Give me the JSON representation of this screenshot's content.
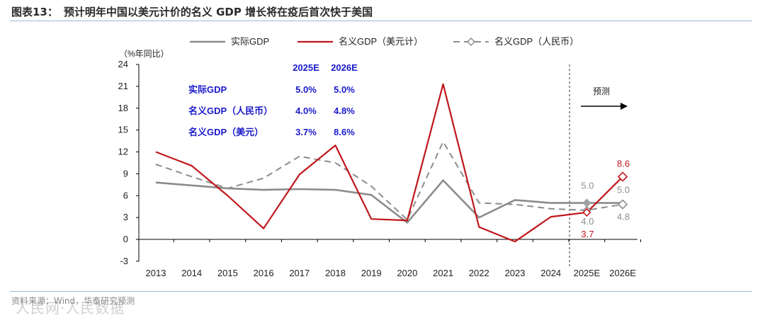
{
  "header": {
    "figure_label": "图表13：",
    "title": "预计明年中国以美元计价的名义 GDP 增长将在疫后首次快于美国"
  },
  "source": "资料来源：Wind，华泰研究预测",
  "watermark": "人民网·人民数据",
  "colors": {
    "real": "#8c8c8c",
    "usd": "#c0161b",
    "rmb": "#8c8c8c",
    "table_text": "#1a1acc",
    "rule": "#9ab7d4"
  },
  "chart_data": {
    "type": "line",
    "title": "预计明年中国以美元计价的名义 GDP 增长将在疫后首次快于美国",
    "ylabel": "（%年同比）",
    "ylim": [
      -3,
      24
    ],
    "yticks": [
      -3,
      0,
      3,
      6,
      9,
      12,
      15,
      18,
      21,
      24
    ],
    "categories": [
      "2013",
      "2014",
      "2015",
      "2016",
      "2017",
      "2018",
      "2019",
      "2020",
      "2021",
      "2022",
      "2023",
      "2024",
      "2025E",
      "2026E"
    ],
    "forecast_divider_after": "2024",
    "forecast_label": "预测",
    "series": [
      {
        "name": "实际GDP",
        "style": "solid-gray",
        "values": [
          7.8,
          7.4,
          7.0,
          6.8,
          6.9,
          6.8,
          6.1,
          2.3,
          8.1,
          3.0,
          5.4,
          5.0,
          5.0,
          5.0
        ]
      },
      {
        "name": "名义GDP（美元计）",
        "style": "solid-red",
        "values": [
          12.0,
          10.1,
          6.0,
          1.5,
          8.9,
          12.9,
          2.8,
          2.6,
          21.3,
          1.7,
          -0.3,
          3.1,
          3.7,
          8.6
        ]
      },
      {
        "name": "名义GDP（人民币）",
        "style": "dashed-gray",
        "values": [
          10.3,
          8.6,
          7.0,
          8.4,
          11.4,
          10.5,
          7.3,
          2.7,
          13.4,
          5.0,
          4.8,
          4.2,
          4.0,
          4.8
        ]
      }
    ],
    "legend": [
      "实际GDP",
      "名义GDP（美元计）",
      "名义GDP（人民币）"
    ],
    "legend_position": "top",
    "inset_table": {
      "headers": [
        "2025E",
        "2026E"
      ],
      "rows": [
        {
          "label": "实际GDP",
          "values": [
            "5.0%",
            "5.0%"
          ]
        },
        {
          "label": "名义GDP（人民币）",
          "values": [
            "4.0%",
            "4.8%"
          ]
        },
        {
          "label": "名义GDP（美元）",
          "values": [
            "3.7%",
            "8.6%"
          ]
        }
      ]
    },
    "annotations": [
      {
        "category": "2025E",
        "text": "5.0",
        "series": "实际GDP"
      },
      {
        "category": "2025E",
        "text": "4.0",
        "series": "名义GDP（人民币）"
      },
      {
        "category": "2025E",
        "text": "3.7",
        "series": "名义GDP（美元计）"
      },
      {
        "category": "2026E",
        "text": "8.6",
        "series": "名义GDP（美元计）"
      },
      {
        "category": "2026E",
        "text": "5.0",
        "series": "实际GDP"
      },
      {
        "category": "2026E",
        "text": "4.8",
        "series": "名义GDP（人民币）"
      }
    ]
  }
}
